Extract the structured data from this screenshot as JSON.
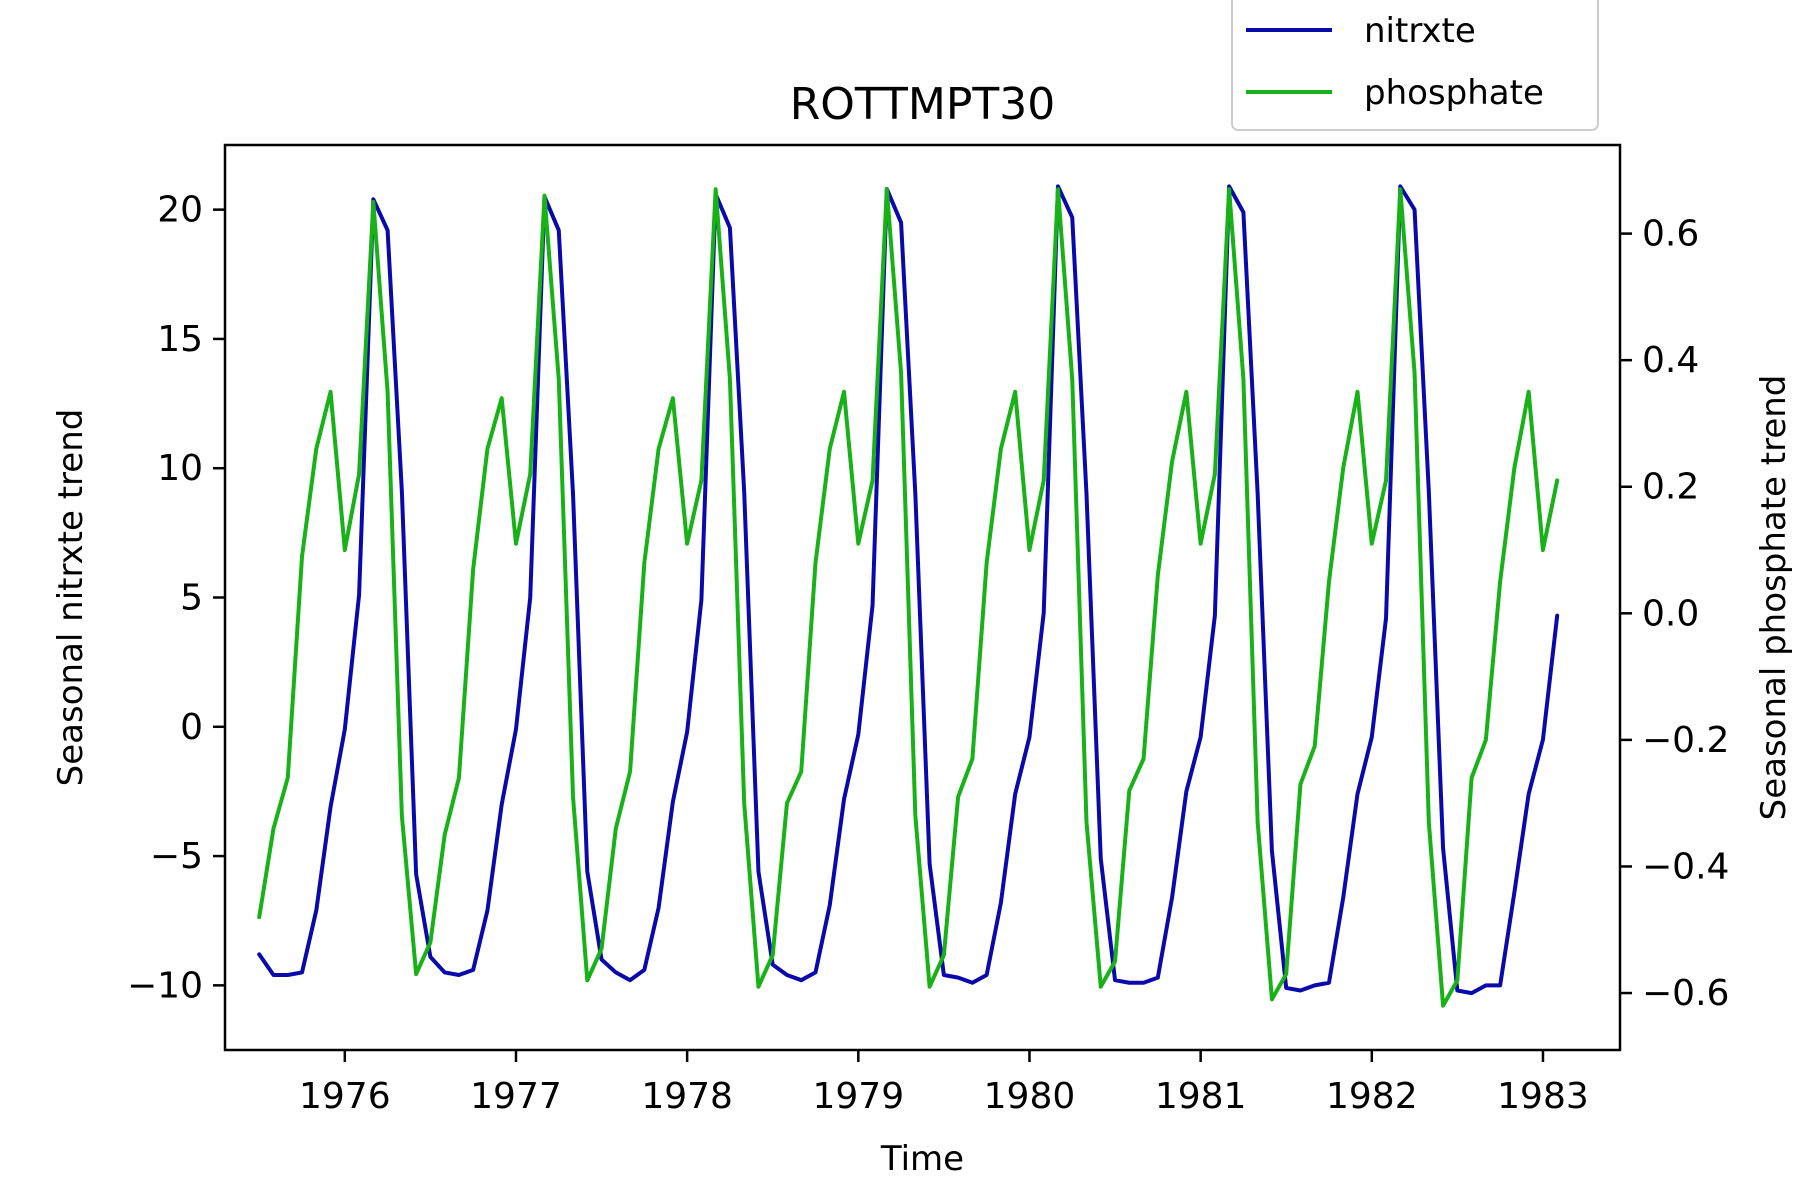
{
  "chart_data": {
    "type": "line",
    "title": "ROTTMPT30",
    "xlabel": "Time",
    "ylabel_left": "Seasonal nitrxte trend",
    "ylabel_right": "Seasonal phosphate trend",
    "xlim": [
      1975.3,
      1983.45
    ],
    "ylim_left": [
      -12.5,
      22.5
    ],
    "ylim_right": [
      -0.69,
      0.74
    ],
    "x_ticks": [
      1976,
      1977,
      1978,
      1979,
      1980,
      1981,
      1982,
      1983
    ],
    "y_ticks_left": [
      -10,
      -5,
      0,
      5,
      10,
      15,
      20
    ],
    "y_ticks_right": [
      -0.6,
      -0.4,
      -0.2,
      0.0,
      0.2,
      0.4,
      0.6
    ],
    "y_tick_labels_left": [
      "−10",
      "−5",
      "0",
      "5",
      "10",
      "15",
      "20"
    ],
    "y_tick_labels_right": [
      "−0.6",
      "−0.4",
      "−0.2",
      "0.0",
      "0.2",
      "0.4",
      "0.6"
    ],
    "grid": false,
    "legend_position": "upper-right, above plot",
    "series": [
      {
        "name": "nitrxte",
        "axis": "left",
        "color": "#0a0aaa",
        "x_start": 1975.5,
        "x_step": 0.08333,
        "values": [
          -8.8,
          -9.6,
          -9.6,
          -9.5,
          -7.1,
          -3.1,
          -0.1,
          5.1,
          20.4,
          19.2,
          9.1,
          -5.7,
          -8.9,
          -9.5,
          -9.6,
          -9.4,
          -7.1,
          -3.0,
          -0.1,
          5.0,
          20.5,
          19.2,
          9.0,
          -5.6,
          -9.0,
          -9.5,
          -9.8,
          -9.4,
          -7.0,
          -2.9,
          -0.2,
          4.9,
          20.6,
          19.3,
          9.1,
          -5.6,
          -9.2,
          -9.6,
          -9.8,
          -9.5,
          -6.9,
          -2.8,
          -0.3,
          4.7,
          20.8,
          19.5,
          9.0,
          -5.3,
          -9.6,
          -9.7,
          -9.9,
          -9.6,
          -6.8,
          -2.6,
          -0.4,
          4.4,
          20.9,
          19.7,
          9.0,
          -5.1,
          -9.8,
          -9.9,
          -9.9,
          -9.7,
          -6.6,
          -2.5,
          -0.4,
          4.3,
          20.9,
          19.9,
          9.0,
          -4.8,
          -10.1,
          -10.2,
          -10.0,
          -9.9,
          -6.6,
          -2.6,
          -0.4,
          4.2,
          20.9,
          20.0,
          9.1,
          -4.7,
          -10.2,
          -10.3,
          -10.0,
          -10.0,
          -6.4,
          -2.6,
          -0.5,
          4.3
        ]
      },
      {
        "name": "phosphate",
        "axis": "right",
        "color": "#18b218",
        "x_start": 1975.5,
        "x_step": 0.08333,
        "values": [
          -0.48,
          -0.34,
          -0.26,
          0.09,
          0.26,
          0.35,
          0.1,
          0.22,
          0.65,
          0.35,
          -0.32,
          -0.57,
          -0.52,
          -0.35,
          -0.26,
          0.07,
          0.26,
          0.34,
          0.11,
          0.22,
          0.66,
          0.37,
          -0.29,
          -0.58,
          -0.53,
          -0.34,
          -0.25,
          0.08,
          0.26,
          0.34,
          0.11,
          0.21,
          0.67,
          0.37,
          -0.3,
          -0.59,
          -0.54,
          -0.3,
          -0.25,
          0.08,
          0.26,
          0.35,
          0.11,
          0.21,
          0.67,
          0.38,
          -0.32,
          -0.59,
          -0.54,
          -0.29,
          -0.23,
          0.08,
          0.26,
          0.35,
          0.1,
          0.21,
          0.67,
          0.37,
          -0.33,
          -0.59,
          -0.55,
          -0.28,
          -0.23,
          0.06,
          0.24,
          0.35,
          0.11,
          0.22,
          0.67,
          0.37,
          -0.33,
          -0.61,
          -0.57,
          -0.27,
          -0.21,
          0.05,
          0.23,
          0.35,
          0.11,
          0.21,
          0.67,
          0.38,
          -0.33,
          -0.62,
          -0.58,
          -0.26,
          -0.2,
          0.05,
          0.23,
          0.35,
          0.1,
          0.21
        ]
      }
    ]
  }
}
